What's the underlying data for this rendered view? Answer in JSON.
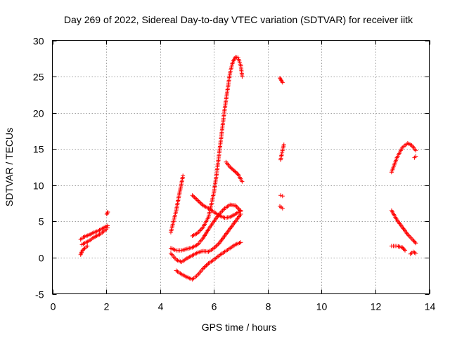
{
  "chart_data": {
    "type": "scatter",
    "title": "Day 269 of 2022, Sidereal Day-to-day VTEC variation (SDTVAR) for receiver iitk",
    "xlabel": "GPS time / hours",
    "ylabel": "SDTVAR / TECUs",
    "xlim": [
      0,
      14
    ],
    "ylim": [
      -5,
      30
    ],
    "x_ticks": [
      0,
      2,
      4,
      6,
      8,
      10,
      12,
      14
    ],
    "y_ticks": [
      -5,
      0,
      5,
      10,
      15,
      20,
      25,
      30
    ],
    "grid": true,
    "marker": "plus",
    "color": "#ff0000",
    "series": [
      {
        "x": [
          1.1,
          1.2,
          1.3,
          1.4,
          1.5,
          1.6,
          1.7,
          1.8,
          1.9,
          2.0,
          2.05
        ],
        "y": [
          1.8,
          2.0,
          2.2,
          2.4,
          2.7,
          2.9,
          3.1,
          3.3,
          3.6,
          3.9,
          4.1
        ]
      },
      {
        "x": [
          1.05,
          1.15,
          1.25,
          1.35,
          1.45,
          1.55,
          1.65,
          1.75,
          1.85,
          1.95,
          2.05
        ],
        "y": [
          2.5,
          2.8,
          3.0,
          3.1,
          3.3,
          3.5,
          3.6,
          3.8,
          4.0,
          4.2,
          4.4
        ]
      },
      {
        "x": [
          1.05,
          1.1,
          1.2,
          1.3
        ],
        "y": [
          0.4,
          0.9,
          1.3,
          1.6
        ]
      },
      {
        "x": [
          2.02,
          2.06
        ],
        "y": [
          6.0,
          6.3
        ]
      },
      {
        "x": [
          4.4,
          4.5,
          4.6,
          4.7,
          4.8,
          4.85
        ],
        "y": [
          3.5,
          5.0,
          6.5,
          8.5,
          10.3,
          11.3
        ]
      },
      {
        "x": [
          4.4,
          4.6,
          4.8,
          5.0,
          5.2,
          5.4,
          5.6,
          5.8,
          6.0,
          6.2,
          6.4,
          6.6,
          6.8,
          7.0
        ],
        "y": [
          1.3,
          1.0,
          1.0,
          1.2,
          1.4,
          1.8,
          2.7,
          3.9,
          5.0,
          6.0,
          6.8,
          7.3,
          7.2,
          6.4
        ]
      },
      {
        "x": [
          5.2,
          5.4,
          5.6,
          5.8,
          6.0,
          6.2,
          6.4,
          6.6,
          6.8,
          7.0
        ],
        "y": [
          8.6,
          7.9,
          7.2,
          6.8,
          6.3,
          5.8,
          5.5,
          5.6,
          6.0,
          6.5
        ]
      },
      {
        "x": [
          4.4,
          4.6,
          4.8,
          5.0,
          5.2,
          5.4,
          5.6,
          5.8,
          6.0,
          6.2,
          6.4,
          6.6,
          6.8,
          7.0
        ],
        "y": [
          0.6,
          -0.3,
          -0.6,
          -0.1,
          0.3,
          0.7,
          0.9,
          0.8,
          1.3,
          2.0,
          3.0,
          4.0,
          5.0,
          6.0
        ]
      },
      {
        "x": [
          4.6,
          4.8,
          5.0,
          5.2,
          5.4,
          5.6,
          5.8,
          6.0,
          6.2,
          6.4,
          6.6,
          6.8,
          7.0
        ],
        "y": [
          -1.8,
          -2.3,
          -2.7,
          -3.0,
          -2.4,
          -1.5,
          -0.8,
          -0.3,
          0.3,
          0.8,
          1.3,
          1.8,
          2.1
        ]
      },
      {
        "x": [
          5.2,
          5.4,
          5.6,
          5.8,
          6.0,
          6.1,
          6.2,
          6.3,
          6.4,
          6.5,
          6.6,
          6.7,
          6.8,
          6.9,
          7.0,
          7.05
        ],
        "y": [
          3.0,
          3.4,
          4.2,
          5.6,
          9.0,
          11.5,
          14.5,
          17.5,
          20.5,
          23.0,
          25.5,
          27.0,
          27.7,
          27.6,
          26.5,
          25.0
        ]
      },
      {
        "x": [
          6.45,
          6.6,
          6.75,
          6.9,
          7.05
        ],
        "y": [
          13.2,
          12.5,
          12.0,
          11.5,
          10.5
        ]
      },
      {
        "x": [
          8.45,
          8.5,
          8.55
        ],
        "y": [
          24.8,
          24.5,
          24.2
        ]
      },
      {
        "x": [
          8.48,
          8.52,
          8.56,
          8.6
        ],
        "y": [
          13.5,
          14.3,
          15.0,
          15.6
        ]
      },
      {
        "x": [
          8.48,
          8.55
        ],
        "y": [
          8.6,
          8.5
        ]
      },
      {
        "x": [
          8.45,
          8.55
        ],
        "y": [
          7.1,
          6.8
        ]
      },
      {
        "x": [
          12.6,
          12.8,
          13.0,
          13.2,
          13.35,
          13.5
        ],
        "y": [
          11.8,
          13.8,
          15.2,
          15.8,
          15.5,
          14.8
        ]
      },
      {
        "x": [
          13.45,
          13.5
        ],
        "y": [
          13.8,
          14.0
        ]
      },
      {
        "x": [
          12.6,
          12.8,
          13.0,
          13.2,
          13.4,
          13.5
        ],
        "y": [
          6.5,
          5.2,
          4.2,
          3.2,
          2.4,
          2.0
        ]
      },
      {
        "x": [
          12.6,
          12.8,
          13.0,
          13.1
        ],
        "y": [
          1.6,
          1.6,
          1.4,
          1.0
        ]
      },
      {
        "x": [
          13.3,
          13.4,
          13.5
        ],
        "y": [
          0.5,
          0.8,
          0.6
        ]
      }
    ]
  }
}
